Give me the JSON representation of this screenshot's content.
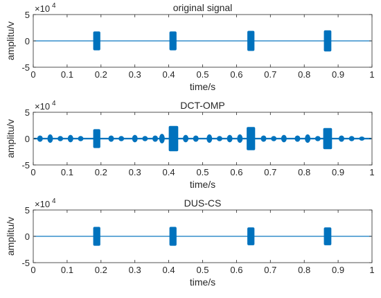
{
  "chart_data": [
    {
      "type": "line",
      "title": "original signal",
      "xlabel": "time/s",
      "ylabel": "amplitu/v",
      "y_multiplier": "×10",
      "y_exponent": "4",
      "xlim": [
        0,
        1
      ],
      "ylim": [
        -5,
        5
      ],
      "xticks": [
        "0",
        "0.1",
        "0.2",
        "0.3",
        "0.4",
        "0.5",
        "0.6",
        "0.7",
        "0.8",
        "0.9",
        "1"
      ],
      "yticks": [
        "5",
        "0",
        "-5"
      ],
      "grid": false,
      "series_color": "#0072BD",
      "baseline_amplitude": 0.02,
      "bursts": [
        {
          "start": 0.177,
          "end": 0.198,
          "peak": 1.8,
          "trough": -1.8
        },
        {
          "start": 0.402,
          "end": 0.423,
          "peak": 1.8,
          "trough": -1.8
        },
        {
          "start": 0.632,
          "end": 0.653,
          "peak": 1.9,
          "trough": -1.9
        },
        {
          "start": 0.858,
          "end": 0.88,
          "peak": 2.0,
          "trough": -2.0
        }
      ],
      "minor_bursts": []
    },
    {
      "type": "line",
      "title": "DCT-OMP",
      "xlabel": "time/s",
      "ylabel": "amplitu/v",
      "y_multiplier": "×10",
      "y_exponent": "4",
      "xlim": [
        0,
        1
      ],
      "ylim": [
        -5,
        5
      ],
      "xticks": [
        "0",
        "0.1",
        "0.2",
        "0.3",
        "0.4",
        "0.5",
        "0.6",
        "0.7",
        "0.8",
        "0.9",
        "1"
      ],
      "yticks": [
        "5",
        "0",
        "-5"
      ],
      "grid": false,
      "series_color": "#0072BD",
      "baseline_amplitude": 0.15,
      "bursts": [
        {
          "start": 0.177,
          "end": 0.198,
          "peak": 1.8,
          "trough": -1.8
        },
        {
          "start": 0.4,
          "end": 0.428,
          "peak": 2.4,
          "trough": -2.4
        },
        {
          "start": 0.63,
          "end": 0.655,
          "peak": 2.2,
          "trough": -2.2
        },
        {
          "start": 0.856,
          "end": 0.882,
          "peak": 2.0,
          "trough": -2.0
        }
      ],
      "minor_bursts": [
        {
          "x": 0.02,
          "a": 0.6
        },
        {
          "x": 0.05,
          "a": 0.8
        },
        {
          "x": 0.08,
          "a": 0.5
        },
        {
          "x": 0.11,
          "a": 0.7
        },
        {
          "x": 0.14,
          "a": 0.5
        },
        {
          "x": 0.23,
          "a": 0.6
        },
        {
          "x": 0.26,
          "a": 0.5
        },
        {
          "x": 0.3,
          "a": 0.7
        },
        {
          "x": 0.33,
          "a": 0.5
        },
        {
          "x": 0.36,
          "a": 0.6
        },
        {
          "x": 0.38,
          "a": 0.9
        },
        {
          "x": 0.45,
          "a": 0.7
        },
        {
          "x": 0.48,
          "a": 0.6
        },
        {
          "x": 0.52,
          "a": 0.8
        },
        {
          "x": 0.55,
          "a": 0.5
        },
        {
          "x": 0.58,
          "a": 0.7
        },
        {
          "x": 0.61,
          "a": 0.8
        },
        {
          "x": 0.68,
          "a": 0.6
        },
        {
          "x": 0.71,
          "a": 0.5
        },
        {
          "x": 0.74,
          "a": 0.7
        },
        {
          "x": 0.78,
          "a": 0.6
        },
        {
          "x": 0.81,
          "a": 0.8
        },
        {
          "x": 0.84,
          "a": 0.5
        },
        {
          "x": 0.91,
          "a": 0.6
        },
        {
          "x": 0.94,
          "a": 0.5
        },
        {
          "x": 0.97,
          "a": 0.4
        }
      ]
    },
    {
      "type": "line",
      "title": "DUS-CS",
      "xlabel": "time/s",
      "ylabel": "amplitu/v",
      "y_multiplier": "×10",
      "y_exponent": "4",
      "xlim": [
        0,
        1
      ],
      "ylim": [
        -5,
        5
      ],
      "xticks": [
        "0",
        "0.1",
        "0.2",
        "0.3",
        "0.4",
        "0.5",
        "0.6",
        "0.7",
        "0.8",
        "0.9",
        "1"
      ],
      "yticks": [
        "5",
        "0",
        "-5"
      ],
      "grid": false,
      "series_color": "#0072BD",
      "baseline_amplitude": 0.0,
      "bursts": [
        {
          "start": 0.177,
          "end": 0.198,
          "peak": 1.8,
          "trough": -1.8
        },
        {
          "start": 0.402,
          "end": 0.423,
          "peak": 1.8,
          "trough": -1.8
        },
        {
          "start": 0.632,
          "end": 0.653,
          "peak": 1.7,
          "trough": -1.7
        },
        {
          "start": 0.858,
          "end": 0.88,
          "peak": 1.7,
          "trough": -1.7
        }
      ],
      "minor_bursts": []
    }
  ]
}
